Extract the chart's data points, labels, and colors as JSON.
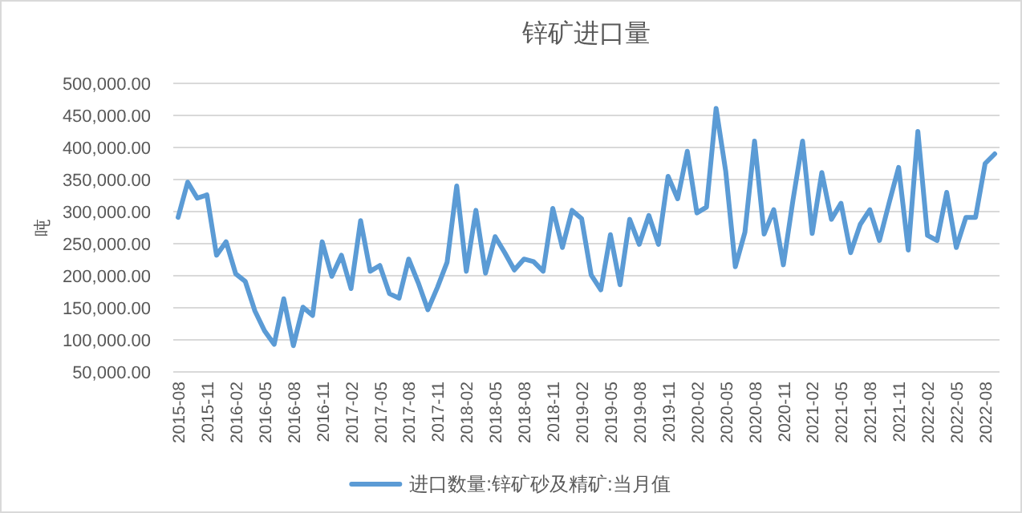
{
  "chart_data": {
    "type": "line",
    "title": "锌矿进口量",
    "ylabel": "吨",
    "categories": [
      "2015-08",
      null,
      null,
      "2015-11",
      null,
      null,
      "2016-02",
      null,
      null,
      "2016-05",
      null,
      null,
      "2016-08",
      null,
      null,
      "2016-11",
      null,
      null,
      "2017-02",
      null,
      null,
      "2017-05",
      null,
      null,
      "2017-08",
      null,
      null,
      "2017-11",
      null,
      null,
      "2018-02",
      null,
      null,
      "2018-05",
      null,
      null,
      "2018-08",
      null,
      null,
      "2018-11",
      null,
      null,
      "2019-02",
      null,
      null,
      "2019-05",
      null,
      null,
      "2019-08",
      null,
      null,
      "2019-11",
      null,
      null,
      "2020-02",
      null,
      null,
      "2020-05",
      null,
      null,
      "2020-08",
      null,
      null,
      "2020-11",
      null,
      null,
      "2021-02",
      null,
      null,
      "2021-05",
      null,
      null,
      "2021-08",
      null,
      null,
      "2021-11",
      null,
      null,
      "2022-02",
      null,
      null,
      "2022-05",
      null,
      null,
      "2022-08",
      null
    ],
    "series": [
      {
        "name": "进口数量:锌矿砂及精矿:当月值",
        "color": "#5b9bd5",
        "values": [
          291000,
          346000,
          321000,
          326000,
          232000,
          253000,
          203000,
          191000,
          145000,
          114000,
          93000,
          164000,
          91000,
          151000,
          138000,
          253000,
          199000,
          232000,
          180000,
          286000,
          207000,
          216000,
          172000,
          165000,
          226000,
          189000,
          147000,
          182000,
          221000,
          340000,
          207000,
          302000,
          204000,
          261000,
          236000,
          209000,
          226000,
          222000,
          207000,
          305000,
          244000,
          302000,
          289000,
          201000,
          178000,
          264000,
          186000,
          288000,
          249000,
          294000,
          249000,
          355000,
          320000,
          394000,
          298000,
          307000,
          461000,
          363000,
          214000,
          268000,
          410000,
          265000,
          303000,
          217000,
          318000,
          410000,
          266000,
          361000,
          288000,
          313000,
          236000,
          280000,
          303000,
          255000,
          313000,
          369000,
          240000,
          425000,
          263000,
          255000,
          330000,
          244000,
          291000,
          291000,
          375000,
          390000
        ]
      }
    ],
    "ylim": [
      50000,
      500000
    ],
    "yticks": [
      {
        "value": 50000,
        "label": "50,000.00"
      },
      {
        "value": 100000,
        "label": "100,000.00"
      },
      {
        "value": 150000,
        "label": "150,000.00"
      },
      {
        "value": 200000,
        "label": "200,000.00"
      },
      {
        "value": 250000,
        "label": "250,000.00"
      },
      {
        "value": 300000,
        "label": "300,000.00"
      },
      {
        "value": 350000,
        "label": "350,000.00"
      },
      {
        "value": 400000,
        "label": "400,000.00"
      },
      {
        "value": 450000,
        "label": "450,000.00"
      },
      {
        "value": 500000,
        "label": "500,000.00"
      }
    ],
    "grid": "y",
    "legend": "bottom",
    "marker": "none",
    "line_style": "solid"
  }
}
